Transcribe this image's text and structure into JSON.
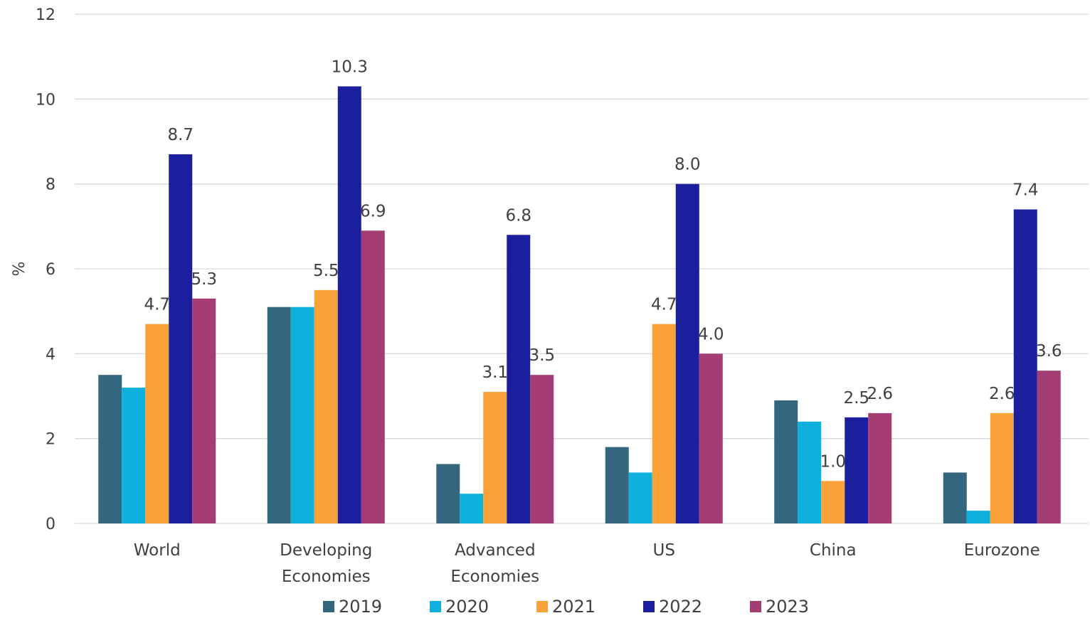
{
  "chart_data": {
    "type": "bar",
    "title": "",
    "xlabel": "",
    "ylabel": "%",
    "ylim": [
      0,
      12
    ],
    "yticks": [
      "0",
      "2",
      "4",
      "6",
      "8",
      "10",
      "12"
    ],
    "grid": true,
    "legend_position": "bottom",
    "categories": [
      [
        "World"
      ],
      [
        "Developing",
        "Economies"
      ],
      [
        "Advanced",
        "Economies"
      ],
      [
        "US"
      ],
      [
        "China"
      ],
      [
        "Eurozone"
      ]
    ],
    "series": [
      {
        "name": "2019",
        "color": "#35667f",
        "values": [
          3.5,
          5.1,
          1.4,
          1.8,
          2.9,
          1.2
        ],
        "labels": [
          "",
          "",
          "",
          "",
          "",
          ""
        ]
      },
      {
        "name": "2020",
        "color": "#0fb1dc",
        "values": [
          3.2,
          5.1,
          0.7,
          1.2,
          2.4,
          0.3
        ],
        "labels": [
          "",
          "",
          "",
          "",
          "",
          ""
        ]
      },
      {
        "name": "2021",
        "color": "#f9a23a",
        "values": [
          4.7,
          5.5,
          3.1,
          4.7,
          1.0,
          2.6
        ],
        "labels": [
          "4.7",
          "5.5",
          "3.1",
          "4.7",
          "1.0",
          "2.6"
        ]
      },
      {
        "name": "2022",
        "color": "#1b1f9e",
        "values": [
          8.7,
          10.3,
          6.8,
          8.0,
          2.5,
          7.4
        ],
        "labels": [
          "8.7",
          "10.3",
          "6.8",
          "8.0",
          "2.5",
          "7.4"
        ]
      },
      {
        "name": "2023",
        "color": "#a43d74",
        "values": [
          5.3,
          6.9,
          3.5,
          4.0,
          2.6,
          3.6
        ],
        "labels": [
          "5.3",
          "6.9",
          "3.5",
          "4.0",
          "2.6",
          "3.6"
        ]
      }
    ]
  }
}
